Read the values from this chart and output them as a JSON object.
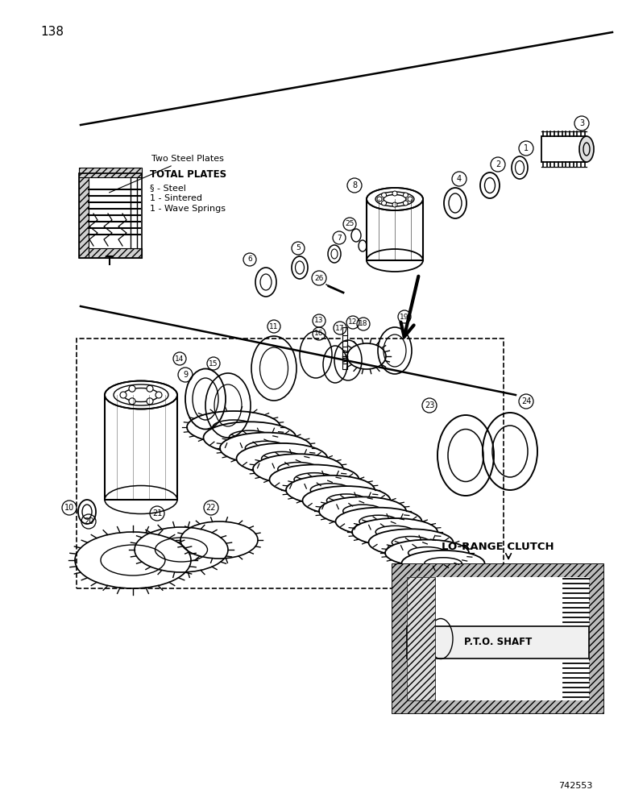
{
  "page_number": "138",
  "doc_number": "742553",
  "bg": "#ffffff",
  "fg": "#000000",
  "inset_label": "Two Steel Plates",
  "total_plates_title": "TOTAL PLATES",
  "total_plates_lines": [
    "§ - Steel",
    "1 - Sintered",
    "1 - Wave Springs"
  ],
  "lo_range": "LO-RANGE CLUTCH",
  "pto": "P.T.O. SHAFT",
  "line1": [
    [
      30,
      770
    ],
    [
      935,
      110
    ]
  ],
  "line2": [
    [
      30,
      575
    ],
    [
      540,
      480
    ]
  ]
}
